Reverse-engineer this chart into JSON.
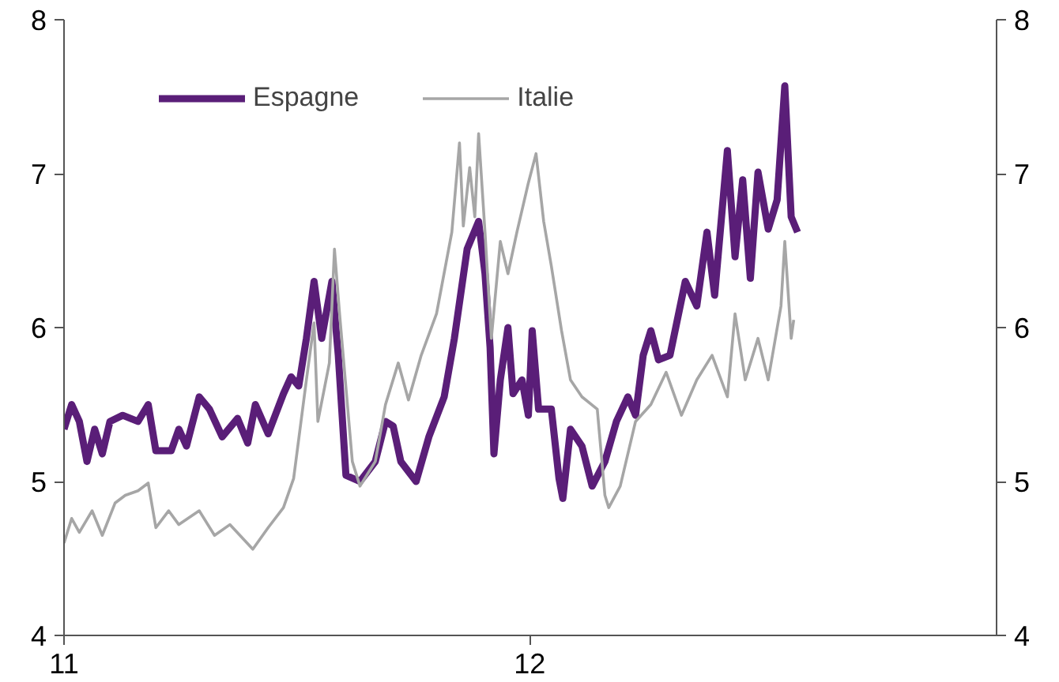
{
  "chart_data": {
    "type": "line",
    "xlim": [
      "2011-01-01",
      "2013-01-01"
    ],
    "xticks": [
      {
        "value": "2011-01-01",
        "label": "11"
      },
      {
        "value": "2012-01-01",
        "label": "12"
      }
    ],
    "ylim": [
      4,
      8
    ],
    "yticks": [
      4,
      5,
      6,
      7,
      8
    ],
    "y2lim": [
      4,
      8
    ],
    "y2ticks": [
      4,
      5,
      6,
      7,
      8
    ],
    "grid": false,
    "legend": "top left",
    "marker": "none",
    "line_style": "solid",
    "series": [
      {
        "name": "Espagne",
        "color": "#5a1e78",
        "x": [
          "2011-01-01",
          "2011-01-07",
          "2011-01-13",
          "2011-01-19",
          "2011-01-25",
          "2011-01-31",
          "2011-02-06",
          "2011-02-16",
          "2011-02-28",
          "2011-03-08",
          "2011-03-14",
          "2011-03-26",
          "2011-04-01",
          "2011-04-07",
          "2011-04-17",
          "2011-04-25",
          "2011-05-05",
          "2011-05-17",
          "2011-05-25",
          "2011-05-31",
          "2011-06-10",
          "2011-06-22",
          "2011-06-28",
          "2011-07-04",
          "2011-07-10",
          "2011-07-16",
          "2011-07-22",
          "2011-07-30",
          "2011-08-04",
          "2011-08-10",
          "2011-08-21",
          "2011-09-02",
          "2011-09-10",
          "2011-09-16",
          "2011-09-22",
          "2011-10-04",
          "2011-10-14",
          "2011-10-26",
          "2011-11-03",
          "2011-11-13",
          "2011-11-22",
          "2011-11-27",
          "2011-12-01",
          "2011-12-04",
          "2011-12-09",
          "2011-12-15",
          "2011-12-19",
          "2011-12-26",
          "2011-12-31",
          "2012-01-03",
          "2012-01-08",
          "2012-01-18",
          "2012-01-24",
          "2012-01-27",
          "2012-02-02",
          "2012-02-11",
          "2012-02-19",
          "2012-02-29",
          "2012-03-09",
          "2012-03-18",
          "2012-03-24",
          "2012-03-30",
          "2012-04-05",
          "2012-04-11",
          "2012-04-20",
          "2012-05-02",
          "2012-05-11",
          "2012-05-19",
          "2012-05-25",
          "2012-06-04",
          "2012-06-10",
          "2012-06-16",
          "2012-06-22",
          "2012-06-28",
          "2012-07-06",
          "2012-07-13",
          "2012-07-19",
          "2012-07-24",
          "2012-07-29"
        ],
        "values": [
          5.34,
          5.5,
          5.39,
          5.13,
          5.34,
          5.18,
          5.39,
          5.43,
          5.39,
          5.5,
          5.2,
          5.2,
          5.34,
          5.23,
          5.55,
          5.47,
          5.29,
          5.41,
          5.25,
          5.5,
          5.31,
          5.57,
          5.68,
          5.62,
          5.93,
          6.3,
          5.93,
          6.3,
          5.82,
          5.04,
          5.0,
          5.13,
          5.39,
          5.36,
          5.13,
          5.0,
          5.29,
          5.55,
          5.93,
          6.51,
          6.69,
          6.35,
          5.87,
          5.18,
          5.66,
          6.0,
          5.57,
          5.66,
          5.43,
          5.98,
          5.47,
          5.47,
          5.02,
          4.89,
          5.34,
          5.23,
          4.97,
          5.13,
          5.39,
          5.55,
          5.43,
          5.82,
          5.98,
          5.79,
          5.82,
          6.3,
          6.14,
          6.62,
          6.21,
          7.15,
          6.46,
          6.96,
          6.32,
          7.01,
          6.64,
          6.83,
          7.57,
          6.72,
          6.62
        ]
      },
      {
        "name": "Italie",
        "color": "#a6a6a6",
        "x": [
          "2011-01-01",
          "2011-01-07",
          "2011-01-13",
          "2011-01-23",
          "2011-01-31",
          "2011-02-10",
          "2011-02-18",
          "2011-02-28",
          "2011-03-08",
          "2011-03-14",
          "2011-03-24",
          "2011-04-01",
          "2011-04-17",
          "2011-04-29",
          "2011-05-11",
          "2011-05-29",
          "2011-06-10",
          "2011-06-22",
          "2011-06-30",
          "2011-07-10",
          "2011-07-16",
          "2011-07-19",
          "2011-07-28",
          "2011-08-01",
          "2011-08-05",
          "2011-08-15",
          "2011-08-21",
          "2011-09-02",
          "2011-09-10",
          "2011-09-20",
          "2011-09-28",
          "2011-10-08",
          "2011-10-20",
          "2011-11-01",
          "2011-11-07",
          "2011-11-10",
          "2011-11-15",
          "2011-11-19",
          "2011-11-22",
          "2011-11-27",
          "2011-12-02",
          "2011-12-09",
          "2011-12-15",
          "2011-12-22",
          "2011-12-31",
          "2012-01-06",
          "2012-01-12",
          "2012-01-18",
          "2012-01-26",
          "2012-02-02",
          "2012-02-11",
          "2012-02-23",
          "2012-02-29",
          "2012-03-03",
          "2012-03-12",
          "2012-03-24",
          "2012-04-05",
          "2012-04-17",
          "2012-04-29",
          "2012-05-11",
          "2012-05-23",
          "2012-06-04",
          "2012-06-10",
          "2012-06-18",
          "2012-06-28",
          "2012-07-06",
          "2012-07-16",
          "2012-07-19",
          "2012-07-24",
          "2012-07-26"
        ],
        "values": [
          4.6,
          4.76,
          4.67,
          4.81,
          4.65,
          4.86,
          4.91,
          4.94,
          4.99,
          4.7,
          4.81,
          4.72,
          4.81,
          4.65,
          4.72,
          4.56,
          4.7,
          4.83,
          5.02,
          5.66,
          6.03,
          5.39,
          5.77,
          6.51,
          6.09,
          5.13,
          4.97,
          5.13,
          5.5,
          5.77,
          5.53,
          5.82,
          6.09,
          6.62,
          7.2,
          6.66,
          7.04,
          6.72,
          7.26,
          6.62,
          5.93,
          6.56,
          6.35,
          6.62,
          6.94,
          7.13,
          6.69,
          6.4,
          5.98,
          5.66,
          5.55,
          5.47,
          4.91,
          4.83,
          4.97,
          5.39,
          5.5,
          5.71,
          5.43,
          5.66,
          5.82,
          5.55,
          6.09,
          5.66,
          5.93,
          5.66,
          6.14,
          6.56,
          5.93,
          6.05
        ]
      }
    ]
  }
}
